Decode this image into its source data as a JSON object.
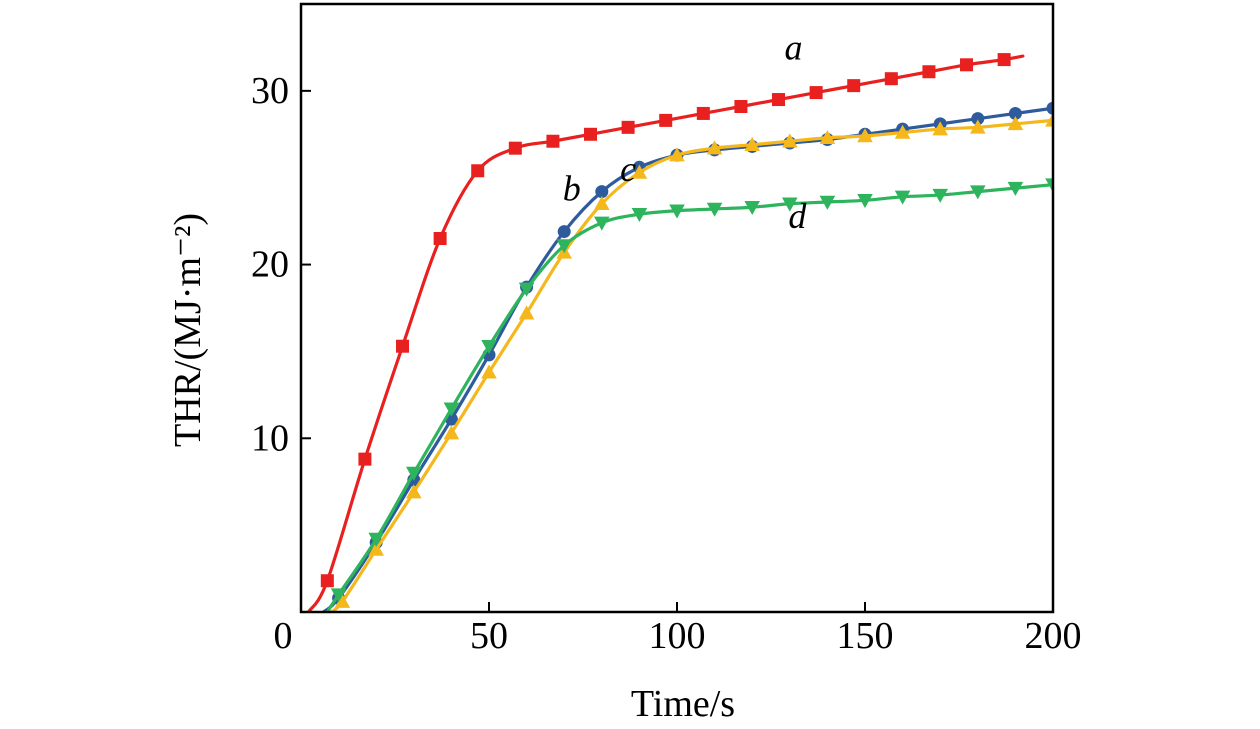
{
  "chart_data": {
    "type": "line",
    "title": "",
    "xlabel": "Time/s",
    "ylabel": "THR/(MJ·m⁻²)",
    "xlim": [
      0,
      200
    ],
    "ylim": [
      0,
      35
    ],
    "x_ticks": [
      0,
      50,
      100,
      150,
      200
    ],
    "x_tick_labels": [
      "0",
      "50",
      "100",
      "150",
      "200"
    ],
    "y_ticks": [
      10,
      20,
      30
    ],
    "y_tick_labels": [
      "10",
      "20",
      "30"
    ],
    "grid": false,
    "series": [
      {
        "name": "a",
        "color": "#e8201f",
        "marker": "square",
        "x": [
          2,
          7,
          17,
          27,
          37,
          47,
          57,
          67,
          77,
          87,
          97,
          107,
          117,
          127,
          137,
          147,
          157,
          167,
          177,
          187,
          192
        ],
        "y": [
          0,
          1.8,
          8.8,
          15.3,
          21.5,
          25.4,
          26.7,
          27.1,
          27.5,
          27.9,
          28.3,
          28.7,
          29.1,
          29.5,
          29.9,
          30.3,
          30.7,
          31.1,
          31.5,
          31.8,
          32.0
        ],
        "markers_x": [
          7,
          17,
          27,
          37,
          47,
          57,
          67,
          77,
          87,
          97,
          107,
          117,
          127,
          137,
          147,
          157,
          167,
          177,
          187
        ],
        "markers_y": [
          1.8,
          8.8,
          15.3,
          21.5,
          25.4,
          26.7,
          27.1,
          27.5,
          27.9,
          28.3,
          28.7,
          29.1,
          29.5,
          29.9,
          30.3,
          30.7,
          31.1,
          31.5,
          31.8
        ]
      },
      {
        "name": "b",
        "color": "#2e5b9c",
        "marker": "circle",
        "x": [
          6,
          10,
          20,
          30,
          40,
          50,
          60,
          70,
          80,
          90,
          100,
          110,
          120,
          130,
          140,
          150,
          160,
          170,
          180,
          190,
          200
        ],
        "y": [
          0,
          0.8,
          4.0,
          7.6,
          11.1,
          14.8,
          18.7,
          21.9,
          24.2,
          25.6,
          26.3,
          26.6,
          26.8,
          27.0,
          27.2,
          27.5,
          27.8,
          28.1,
          28.4,
          28.7,
          29.0
        ],
        "markers_x": [
          10,
          20,
          30,
          40,
          50,
          60,
          70,
          80,
          90,
          100,
          110,
          120,
          130,
          140,
          150,
          160,
          170,
          180,
          190,
          200
        ],
        "markers_y": [
          0.8,
          4.0,
          7.6,
          11.1,
          14.8,
          18.7,
          21.9,
          24.2,
          25.6,
          26.3,
          26.6,
          26.8,
          27.0,
          27.2,
          27.5,
          27.8,
          28.1,
          28.4,
          28.7,
          29.0
        ]
      },
      {
        "name": "c",
        "color": "#f5b81c",
        "marker": "triangle-up",
        "x": [
          8,
          11,
          20,
          30,
          40,
          50,
          60,
          70,
          80,
          90,
          100,
          110,
          120,
          130,
          140,
          150,
          160,
          170,
          180,
          190,
          200
        ],
        "y": [
          0,
          0.6,
          3.6,
          6.9,
          10.3,
          13.8,
          17.2,
          20.7,
          23.5,
          25.3,
          26.3,
          26.7,
          26.9,
          27.1,
          27.3,
          27.4,
          27.6,
          27.8,
          27.9,
          28.1,
          28.3
        ],
        "markers_x": [
          11,
          20,
          30,
          40,
          50,
          60,
          70,
          80,
          90,
          100,
          110,
          120,
          130,
          140,
          150,
          160,
          170,
          180,
          190,
          200
        ],
        "markers_y": [
          0.6,
          3.6,
          6.9,
          10.3,
          13.8,
          17.2,
          20.7,
          23.5,
          25.3,
          26.3,
          26.7,
          26.9,
          27.1,
          27.3,
          27.4,
          27.6,
          27.8,
          27.9,
          28.1,
          28.3
        ]
      },
      {
        "name": "d",
        "color": "#2fb45e",
        "marker": "triangle-down",
        "x": [
          7,
          10,
          20,
          30,
          40,
          50,
          60,
          70,
          80,
          90,
          100,
          110,
          120,
          130,
          140,
          150,
          160,
          170,
          180,
          190,
          200
        ],
        "y": [
          0,
          1.0,
          4.2,
          8.0,
          11.7,
          15.3,
          18.6,
          21.1,
          22.4,
          22.9,
          23.1,
          23.2,
          23.3,
          23.5,
          23.6,
          23.7,
          23.9,
          24.0,
          24.2,
          24.4,
          24.6
        ],
        "markers_x": [
          10,
          20,
          30,
          40,
          50,
          60,
          70,
          80,
          90,
          100,
          110,
          120,
          130,
          140,
          150,
          160,
          170,
          180,
          190,
          200
        ],
        "markers_y": [
          1.0,
          4.2,
          8.0,
          11.7,
          15.3,
          18.6,
          21.1,
          22.4,
          22.9,
          23.1,
          23.2,
          23.3,
          23.5,
          23.6,
          23.7,
          23.9,
          24.0,
          24.2,
          24.4,
          24.6
        ]
      }
    ],
    "series_labels": [
      {
        "text": "a",
        "x": 131,
        "y": 31.8
      },
      {
        "text": "b",
        "x": 72,
        "y": 23.7
      },
      {
        "text": "c",
        "x": 87,
        "y": 24.8
      },
      {
        "text": "d",
        "x": 132,
        "y": 22.1
      }
    ]
  }
}
